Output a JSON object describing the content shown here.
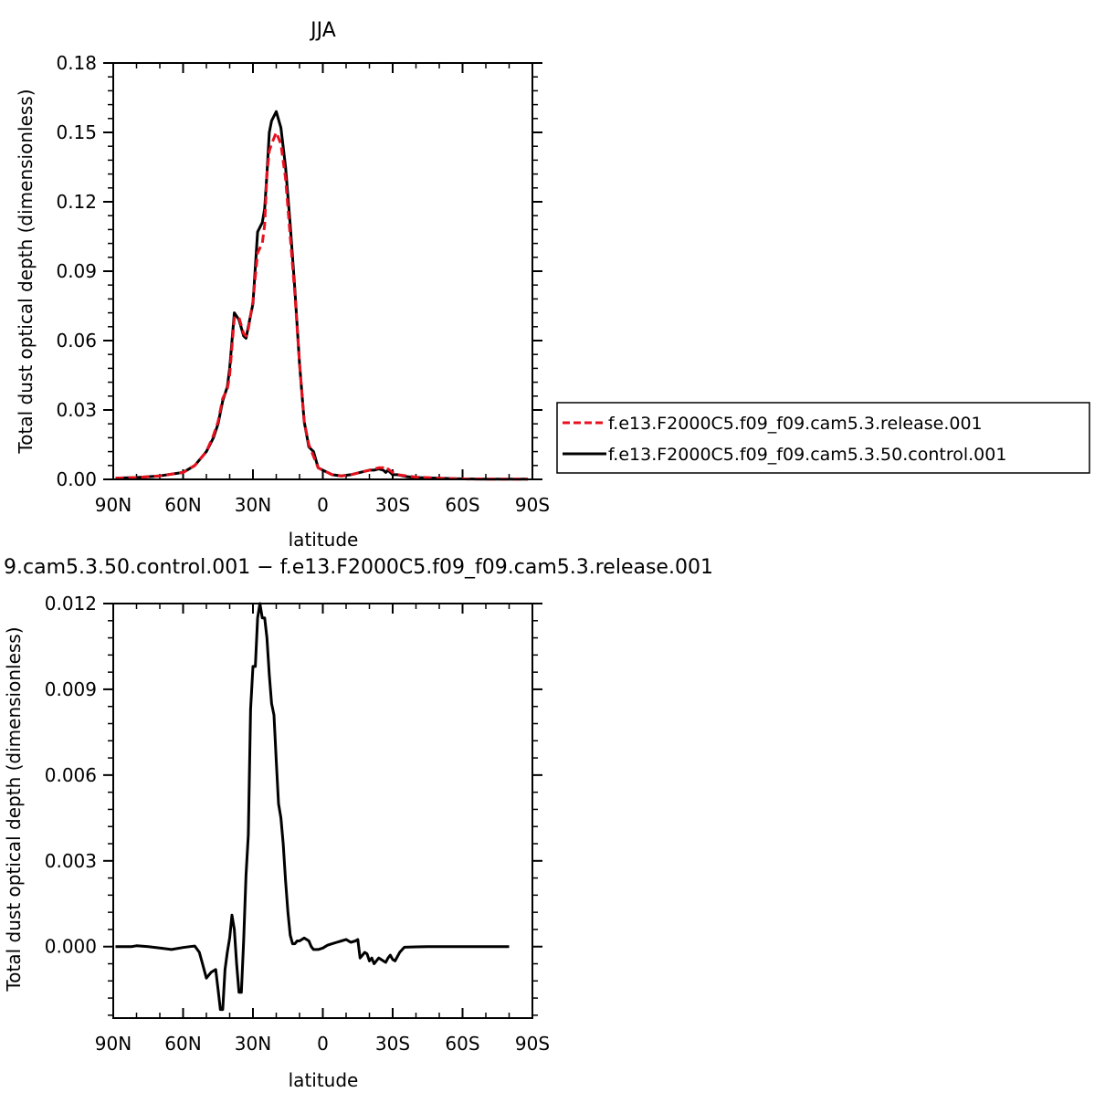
{
  "chart_data": [
    {
      "type": "line",
      "title": "JJA",
      "xlabel": "latitude",
      "ylabel": "Total dust optical depth (dimensionless)",
      "xlim": [
        90,
        -90
      ],
      "ylim": [
        0,
        0.18
      ],
      "x_ticks": [
        {
          "value": 90,
          "label": "90N"
        },
        {
          "value": 60,
          "label": "60N"
        },
        {
          "value": 30,
          "label": "30N"
        },
        {
          "value": 0,
          "label": "0"
        },
        {
          "value": -30,
          "label": "30S"
        },
        {
          "value": -60,
          "label": "60S"
        },
        {
          "value": -90,
          "label": "90S"
        }
      ],
      "y_ticks": [
        {
          "value": 0,
          "label": "0.00"
        },
        {
          "value": 0.03,
          "label": "0.03"
        },
        {
          "value": 0.06,
          "label": "0.06"
        },
        {
          "value": 0.09,
          "label": "0.09"
        },
        {
          "value": 0.12,
          "label": "0.12"
        },
        {
          "value": 0.15,
          "label": "0.15"
        },
        {
          "value": 0.18,
          "label": "0.18"
        }
      ],
      "legend_position": "right",
      "series": [
        {
          "name": "f.e13.F2000C5.f09_f09.cam5.3.release.001",
          "color": "#e8101e",
          "dash": "dashed",
          "x": [
            89,
            80,
            70,
            60,
            55,
            50,
            47,
            45,
            43,
            41,
            40,
            38,
            36,
            34,
            33,
            32,
            30,
            28,
            26,
            25,
            24,
            23,
            22,
            20,
            18,
            16,
            14,
            12,
            10,
            8,
            6,
            4,
            2,
            0,
            -4,
            -8,
            -12,
            -16,
            -20,
            -22,
            -24,
            -26,
            -27,
            -28,
            -30,
            -32,
            -36,
            -40,
            -50,
            -60,
            -70,
            -80,
            -88
          ],
          "y": [
            0.0005,
            0.0008,
            0.0015,
            0.003,
            0.006,
            0.012,
            0.019,
            0.025,
            0.035,
            0.039,
            0.045,
            0.07,
            0.07,
            0.063,
            0.062,
            0.065,
            0.077,
            0.098,
            0.102,
            0.11,
            0.132,
            0.142,
            0.145,
            0.15,
            0.145,
            0.13,
            0.105,
            0.08,
            0.05,
            0.025,
            0.015,
            0.01,
            0.005,
            0.004,
            0.002,
            0.0015,
            0.002,
            0.003,
            0.004,
            0.0045,
            0.005,
            0.005,
            0.004,
            0.0045,
            0.003,
            0.002,
            0.0015,
            0.001,
            0.0005,
            0.0002,
            0.0001,
            0.0001,
            0.0001
          ]
        },
        {
          "name": "f.e13.F2000C5.f09_f09.cam5.3.50.control.001",
          "color": "#000000",
          "dash": "solid",
          "x": [
            89,
            80,
            70,
            60,
            55,
            50,
            47,
            45,
            43,
            41,
            40,
            38,
            36,
            34,
            33,
            32,
            30,
            28,
            26,
            25,
            24,
            23,
            22,
            20,
            18,
            16,
            14,
            12,
            10,
            8,
            6,
            4,
            2,
            0,
            -4,
            -8,
            -12,
            -16,
            -20,
            -22,
            -24,
            -26,
            -27,
            -28,
            -30,
            -32,
            -36,
            -40,
            -50,
            -60,
            -70,
            -80,
            -88
          ],
          "y": [
            0.0005,
            0.0008,
            0.0015,
            0.003,
            0.006,
            0.012,
            0.018,
            0.024,
            0.034,
            0.04,
            0.048,
            0.072,
            0.069,
            0.062,
            0.061,
            0.066,
            0.076,
            0.107,
            0.111,
            0.117,
            0.132,
            0.15,
            0.155,
            0.159,
            0.152,
            0.135,
            0.11,
            0.082,
            0.05,
            0.025,
            0.014,
            0.012,
            0.005,
            0.004,
            0.002,
            0.0015,
            0.002,
            0.003,
            0.004,
            0.004,
            0.0045,
            0.004,
            0.003,
            0.004,
            0.002,
            0.002,
            0.0012,
            0.0008,
            0.0005,
            0.0002,
            0.0001,
            0.0001,
            0.0001
          ]
        }
      ]
    },
    {
      "type": "line",
      "title": "9.cam5.3.50.control.001 − f.e13.F2000C5.f09_f09.cam5.3.release.001",
      "xlabel": "latitude",
      "ylabel": "Total dust optical depth (dimensionless)",
      "xlim": [
        90,
        -90
      ],
      "ylim": [
        -0.0025,
        0.012
      ],
      "x_ticks": [
        {
          "value": 90,
          "label": "90N"
        },
        {
          "value": 60,
          "label": "60N"
        },
        {
          "value": 30,
          "label": "30N"
        },
        {
          "value": 0,
          "label": "0"
        },
        {
          "value": -30,
          "label": "30S"
        },
        {
          "value": -60,
          "label": "60S"
        },
        {
          "value": -90,
          "label": "90S"
        }
      ],
      "y_ticks": [
        {
          "value": 0,
          "label": "0.000"
        },
        {
          "value": 0.003,
          "label": "0.003"
        },
        {
          "value": 0.006,
          "label": "0.006"
        },
        {
          "value": 0.009,
          "label": "0.009"
        },
        {
          "value": 0.012,
          "label": "0.012"
        }
      ],
      "series": [
        {
          "color": "#000000",
          "dash": "solid",
          "x": [
            89,
            82,
            80,
            75,
            70,
            65,
            60,
            57,
            55,
            53,
            52,
            50,
            48,
            46,
            45,
            44,
            43,
            42,
            41,
            40,
            39,
            38,
            37,
            36,
            35,
            34,
            33,
            32,
            31,
            30,
            29,
            28,
            27,
            26,
            25,
            24,
            23,
            22,
            21,
            20,
            19,
            18,
            17,
            16,
            15,
            14,
            13,
            12,
            11,
            10,
            8,
            6,
            5,
            4,
            3,
            2,
            0,
            -2,
            -4,
            -6,
            -8,
            -10,
            -12,
            -14,
            -15,
            -16,
            -17,
            -18,
            -19,
            -20,
            -21,
            -22,
            -23,
            -24,
            -25,
            -26,
            -27,
            -28,
            -29,
            -30,
            -31,
            -33,
            -35,
            -40,
            -45,
            -50,
            -60,
            -70,
            -80
          ],
          "y": [
            0,
            0,
            3e-05,
            0,
            -5e-05,
            -0.0001,
            -3e-05,
            0,
            2e-05,
            -0.0002,
            -0.0005,
            -0.0011,
            -0.0009,
            -0.0008,
            -0.0015,
            -0.0022,
            -0.0022,
            -0.0008,
            -0.0002,
            0.0003,
            0.0011,
            0.0006,
            -0.0006,
            -0.0016,
            -0.0016,
            0.0002,
            0.0025,
            0.0039,
            0.0083,
            0.0098,
            0.0098,
            0.0115,
            0.012,
            0.0115,
            0.0115,
            0.0108,
            0.0095,
            0.0085,
            0.0081,
            0.0065,
            0.005,
            0.0045,
            0.0036,
            0.0023,
            0.0012,
            0.0004,
            0.0001,
            0.0001,
            0.0002,
            0.0002,
            0.0003,
            0.0002,
            0,
            -0.0001,
            -0.0001,
            -0.0001,
            -5e-05,
            5e-05,
            0.0001,
            0.00015,
            0.0002,
            0.00025,
            0.00015,
            0.0002,
            0.00025,
            -0.0004,
            -0.0003,
            -0.0002,
            -0.00025,
            -0.0005,
            -0.0004,
            -0.0006,
            -0.0005,
            -0.0004,
            -0.00045,
            -0.0005,
            -0.00055,
            -0.0004,
            -0.0003,
            -0.00045,
            -0.0005,
            -0.0002,
            -2e-05,
            -1e-05,
            0,
            0,
            0,
            0,
            0
          ]
        }
      ]
    }
  ]
}
